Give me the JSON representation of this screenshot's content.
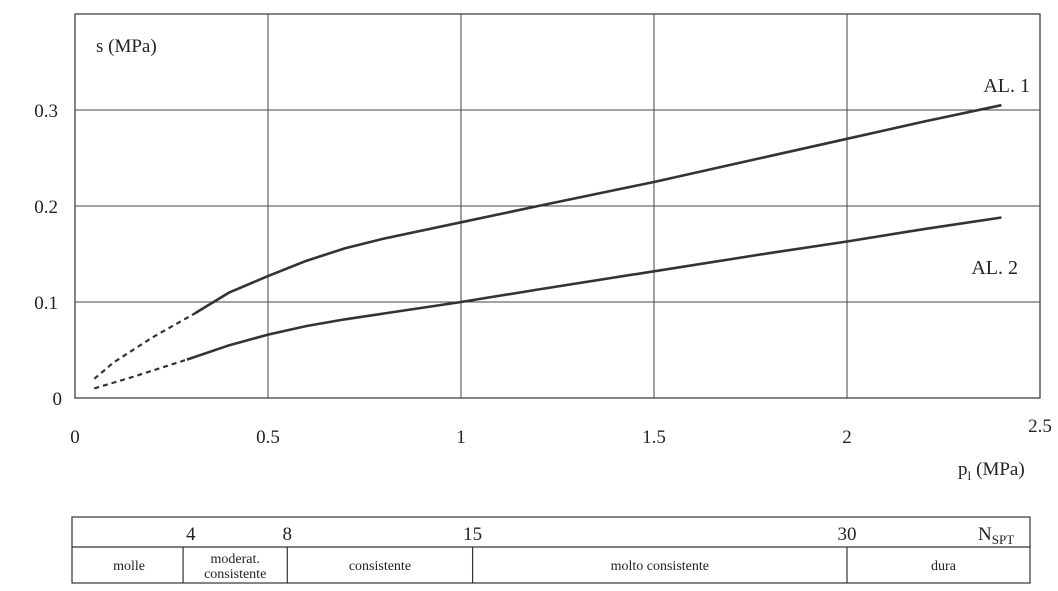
{
  "chart_data": {
    "type": "line",
    "ylabel": "s (MPa)",
    "xlabel_main": "p",
    "xlabel_sub": "l",
    "xlabel_unit": "(MPa)",
    "xlim": [
      0,
      2.5
    ],
    "ylim": [
      0,
      0.4
    ],
    "grid": true,
    "x_ticks": [
      {
        "value": 0,
        "label": "0"
      },
      {
        "value": 0.5,
        "label": "0.5"
      },
      {
        "value": 1,
        "label": "1"
      },
      {
        "value": 1.5,
        "label": "1.5"
      },
      {
        "value": 2,
        "label": "2"
      },
      {
        "value": 2.5,
        "label": "2.5"
      }
    ],
    "y_ticks": [
      {
        "value": 0,
        "label": "0"
      },
      {
        "value": 0.1,
        "label": "0.1"
      },
      {
        "value": 0.2,
        "label": "0.2"
      },
      {
        "value": 0.3,
        "label": "0.3"
      }
    ],
    "series": [
      {
        "name": "AL. 1",
        "dashed_x": [
          0.05,
          0.1,
          0.2,
          0.31
        ],
        "dashed_y": [
          0.02,
          0.037,
          0.063,
          0.088
        ],
        "x": [
          0.31,
          0.4,
          0.5,
          0.6,
          0.7,
          0.8,
          1.0,
          1.2,
          1.5,
          1.8,
          2.0,
          2.2,
          2.4
        ],
        "y": [
          0.088,
          0.11,
          0.127,
          0.143,
          0.156,
          0.166,
          0.183,
          0.2,
          0.225,
          0.252,
          0.27,
          0.288,
          0.305
        ]
      },
      {
        "name": "AL. 2",
        "dashed_x": [
          0.05,
          0.15,
          0.29
        ],
        "dashed_y": [
          0.01,
          0.022,
          0.04
        ],
        "x": [
          0.29,
          0.4,
          0.5,
          0.6,
          0.7,
          0.8,
          1.0,
          1.2,
          1.5,
          1.8,
          2.0,
          2.2,
          2.4
        ],
        "y": [
          0.04,
          0.055,
          0.066,
          0.075,
          0.082,
          0.088,
          0.1,
          0.113,
          0.132,
          0.151,
          0.163,
          0.176,
          0.188
        ]
      }
    ]
  },
  "nspt_scale": {
    "label_main": "N",
    "label_sub": "SPT",
    "ticks": [
      {
        "label": "4",
        "x": 0.3
      },
      {
        "label": "8",
        "x": 0.55
      },
      {
        "label": "15",
        "x": 1.03
      },
      {
        "label": "30",
        "x": 2.0
      }
    ]
  },
  "consistency_bands": [
    {
      "lines": [
        "molle"
      ],
      "from": 0,
      "to": 0.28
    },
    {
      "lines": [
        "moderat.",
        "consistente"
      ],
      "from": 0.28,
      "to": 0.55
    },
    {
      "lines": [
        "consistente"
      ],
      "from": 0.55,
      "to": 1.03
    },
    {
      "lines": [
        "molto consistente"
      ],
      "from": 1.03,
      "to": 2.0
    },
    {
      "lines": [
        "dura"
      ],
      "from": 2.0,
      "to": 2.5
    }
  ]
}
